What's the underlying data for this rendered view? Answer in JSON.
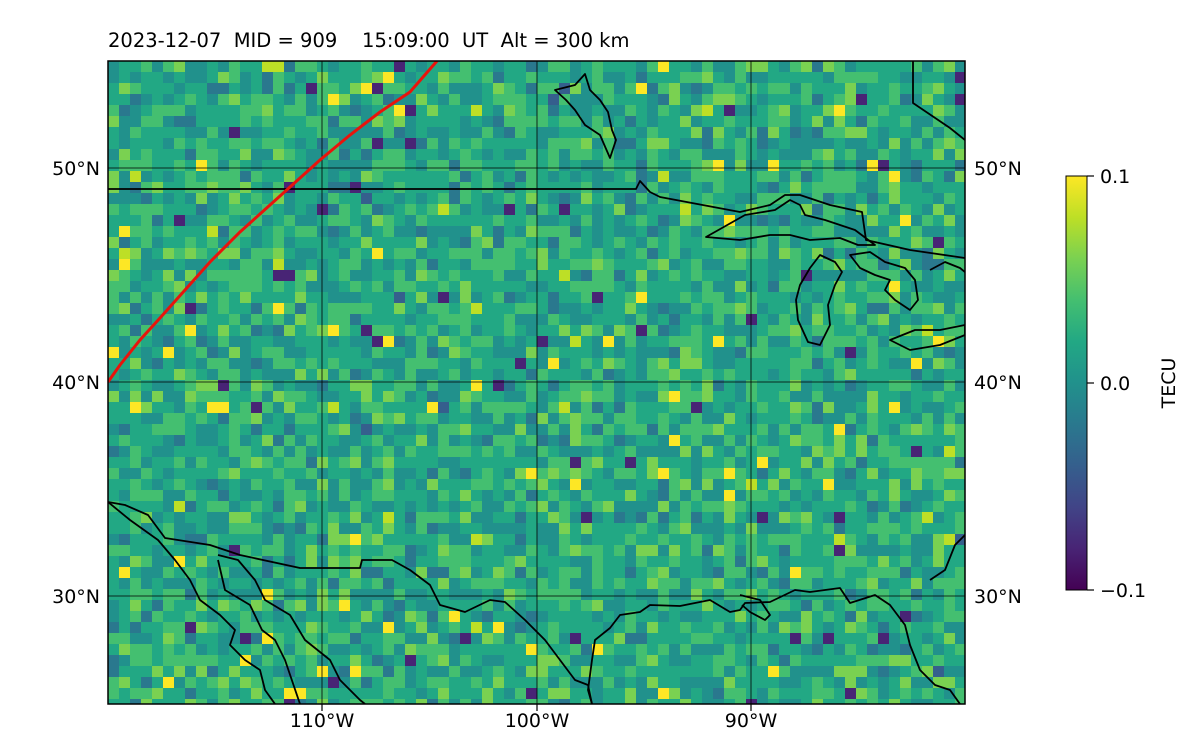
{
  "header": {
    "title": "2023-12-07  MID = 909    15:09:00  UT  Alt = 300 km"
  },
  "map": {
    "lat_labels": [
      "50°N",
      "40°N",
      "30°N"
    ],
    "lon_labels": [
      "110°W",
      "100°W",
      "90°W"
    ],
    "colors": {
      "land_border": "#000000",
      "boundary_curve": "#e8140c"
    }
  },
  "colorbar": {
    "label": "TECU",
    "tick_labels": [
      "0.1",
      "0.0",
      "−0.1"
    ],
    "range": [
      -0.1,
      0.1
    ],
    "colormap": "viridis"
  }
}
